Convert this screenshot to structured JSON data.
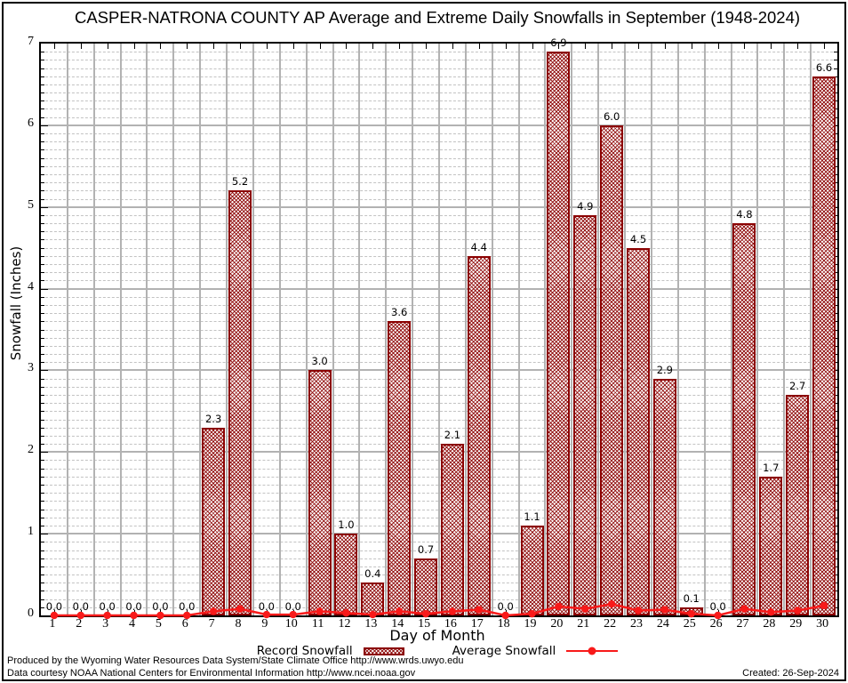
{
  "title": "CASPER-NATRONA COUNTY AP Average and Extreme Daily Snowfalls in September (1948-2024)",
  "footer": {
    "line1": "Produced by the Wyoming Water Resources Data System/State Climate Office http://www.wrds.uwyo.edu",
    "line2": "Data courtesy NOAA National Centers for Environmental Information http://www.ncei.noaa.gov",
    "created": "Created: 26-Sep-2024"
  },
  "colors": {
    "bar_border": "#8b0000",
    "bar_hatch": "#8b0000",
    "average_line": "#f81a1a",
    "grid_major": "#b2b2b2",
    "grid_minor": "#c3c3c3",
    "axis": "#000000"
  },
  "chart_data": {
    "type": "bar",
    "title": "CASPER-NATRONA COUNTY AP Average and Extreme Daily Snowfalls in September (1948-2024)",
    "xlabel": "Day of Month",
    "ylabel": "Snowfall (Inches)",
    "ylim": [
      0,
      7
    ],
    "y_major_step": 1,
    "y_minor_step": 0.1,
    "grid": true,
    "legend_position": "bottom",
    "categories": [
      1,
      2,
      3,
      4,
      5,
      6,
      7,
      8,
      9,
      10,
      11,
      12,
      13,
      14,
      15,
      16,
      17,
      18,
      19,
      20,
      21,
      22,
      23,
      24,
      25,
      26,
      27,
      28,
      29,
      30
    ],
    "series": [
      {
        "name": "Record Snowfall",
        "type": "bar",
        "values": [
          0,
          0,
          0,
          0,
          0,
          0,
          2.3,
          5.2,
          0,
          0,
          3.0,
          1.0,
          0.4,
          3.6,
          0.7,
          2.1,
          4.4,
          0,
          1.1,
          6.9,
          4.9,
          6.0,
          4.5,
          2.9,
          0.1,
          0,
          4.8,
          1.7,
          2.7,
          6.6
        ],
        "labels": [
          "0.0",
          "0.0",
          "0.0",
          "0.0",
          "0.0",
          "0.0",
          "2.3",
          "5.2",
          "0.0",
          "0.0",
          "3.0",
          "1.0",
          "0.4",
          "3.6",
          "0.7",
          "2.1",
          "4.4",
          "0.0",
          "1.1",
          "6.9",
          "4.9",
          "6.0",
          "4.5",
          "2.9",
          "0.1",
          "0.0",
          "4.8",
          "1.7",
          "2.7",
          "6.6"
        ]
      },
      {
        "name": "Average Snowfall",
        "type": "line",
        "values": [
          0,
          0,
          0,
          0,
          0,
          0,
          0.05,
          0.08,
          0.01,
          0.01,
          0.05,
          0.03,
          0.01,
          0.05,
          0.02,
          0.05,
          0.07,
          0,
          0.02,
          0.11,
          0.08,
          0.14,
          0.06,
          0.07,
          0.02,
          0,
          0.08,
          0.04,
          0.06,
          0.12
        ]
      }
    ]
  }
}
